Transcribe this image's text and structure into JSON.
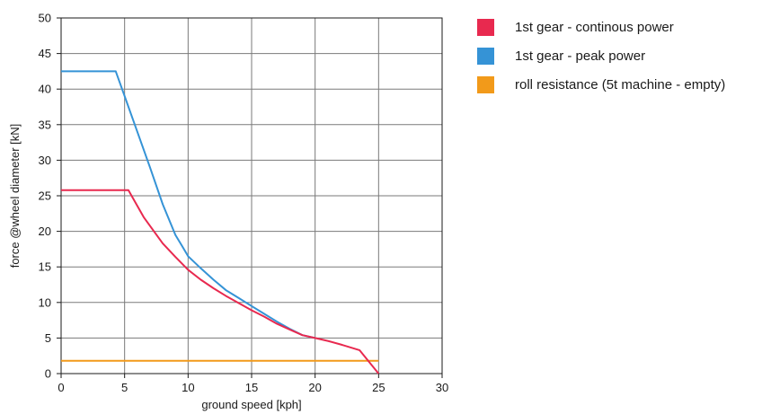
{
  "chart_data": {
    "type": "line",
    "title": "",
    "xlabel": "ground speed [kph]",
    "ylabel": "force @wheel diameter [kN]",
    "xlim": [
      0,
      30
    ],
    "ylim": [
      0,
      50
    ],
    "xticks": [
      "0",
      "5",
      "10",
      "15",
      "20",
      "25",
      "30"
    ],
    "yticks": [
      "0",
      "5",
      "10",
      "15",
      "20",
      "25",
      "30",
      "35",
      "40",
      "45",
      "50"
    ],
    "grid": true,
    "legend_position": "right",
    "series": [
      {
        "name": "1st gear - continous power",
        "color": "#e8294f",
        "points": [
          [
            0,
            25.8
          ],
          [
            5.3,
            25.8
          ],
          [
            6.5,
            22.0
          ],
          [
            8.0,
            18.3
          ],
          [
            9.0,
            16.4
          ],
          [
            10.0,
            14.6
          ],
          [
            11.0,
            13.2
          ],
          [
            12.0,
            12.0
          ],
          [
            13.0,
            10.9
          ],
          [
            14.0,
            9.9
          ],
          [
            15.0,
            8.9
          ],
          [
            16.0,
            8.0
          ],
          [
            17.0,
            7.0
          ],
          [
            18.0,
            6.2
          ],
          [
            19.0,
            5.4
          ],
          [
            20.0,
            5.0
          ],
          [
            21.0,
            4.6
          ],
          [
            22.0,
            4.1
          ],
          [
            23.5,
            3.3
          ],
          [
            25.0,
            0
          ]
        ]
      },
      {
        "name": "1st gear - peak power",
        "color": "#3593d6",
        "points": [
          [
            0,
            42.5
          ],
          [
            4.3,
            42.5
          ],
          [
            5.0,
            39.0
          ],
          [
            6.0,
            34.0
          ],
          [
            7.0,
            29.0
          ],
          [
            8.0,
            23.8
          ],
          [
            9.0,
            19.5
          ],
          [
            9.5,
            18.0
          ],
          [
            10.0,
            16.5
          ],
          [
            11.0,
            14.8
          ],
          [
            12.0,
            13.2
          ],
          [
            13.0,
            11.7
          ],
          [
            14.0,
            10.6
          ],
          [
            15.0,
            9.5
          ],
          [
            16.0,
            8.4
          ],
          [
            17.0,
            7.3
          ],
          [
            18.0,
            6.3
          ],
          [
            19.0,
            5.4
          ],
          [
            20.0,
            5.0
          ]
        ]
      },
      {
        "name": "roll resistance (5t machine - empty)",
        "color": "#f29a1a",
        "points": [
          [
            0,
            1.8
          ],
          [
            25.0,
            1.8
          ]
        ]
      }
    ]
  }
}
